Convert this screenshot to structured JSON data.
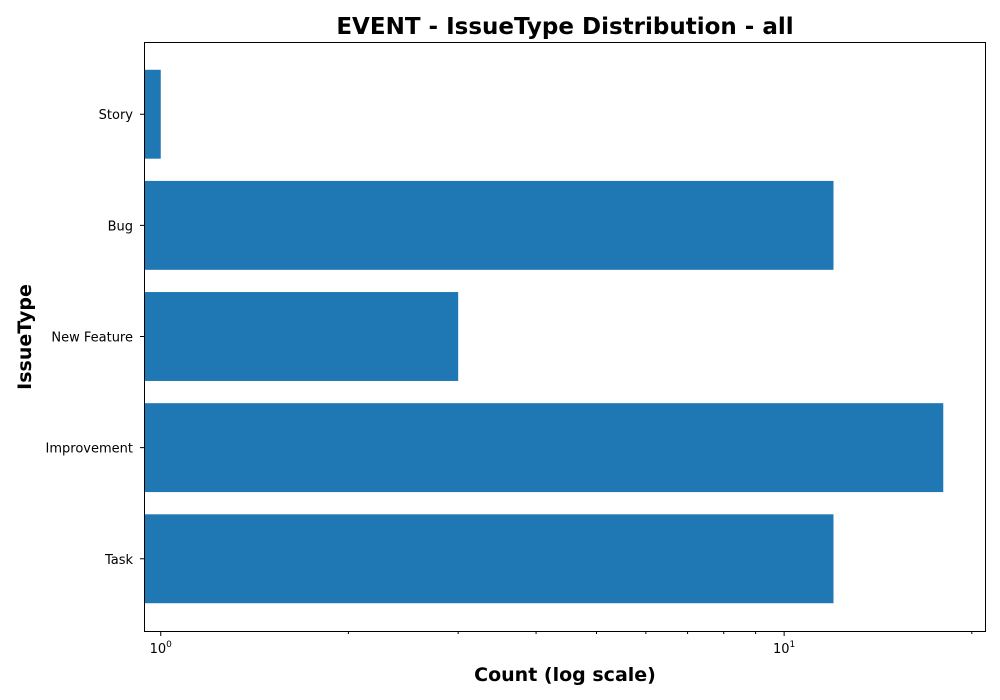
{
  "chart_data": {
    "type": "bar",
    "orientation": "horizontal",
    "title": "EVENT - IssueType Distribution - all",
    "xlabel": "Count (log scale)",
    "ylabel": "IssueType",
    "x_scale": "log",
    "xlim": [
      0.94,
      21
    ],
    "categories": [
      "Story",
      "Bug",
      "New Feature",
      "Improvement",
      "Task"
    ],
    "values": [
      1,
      12,
      3,
      18,
      12
    ],
    "bar_color": "#1f77b4",
    "grid": false,
    "legend": "none",
    "x_major_ticks": [
      {
        "value": 1,
        "base": "10",
        "exp": "0"
      },
      {
        "value": 10,
        "base": "10",
        "exp": "1"
      }
    ]
  }
}
